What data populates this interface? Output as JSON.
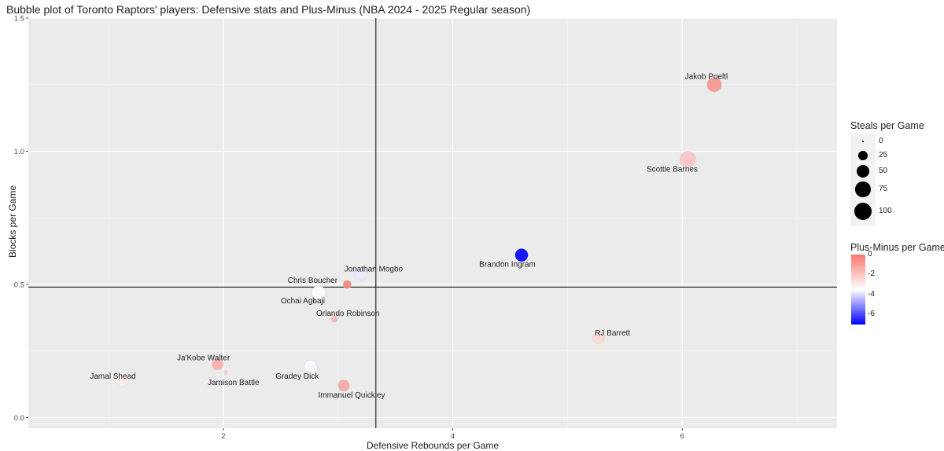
{
  "chart_data": {
    "type": "scatter",
    "title": "Bubble plot of Toronto Raptors' players: Defensive stats and Plus-Minus (NBA 2024 - 2025 Regular season)",
    "xlabel": "Defensive Rebounds per Game",
    "ylabel": "Blocks per Game",
    "xlim": [
      0.3,
      7.35
    ],
    "ylim": [
      -0.04,
      1.5
    ],
    "x_ticks": [
      2,
      4,
      6
    ],
    "y_ticks": [
      0.0,
      0.5,
      1.0,
      1.5
    ],
    "y_tick_labels": [
      "0.0",
      "0.5",
      "1.0",
      "1.5"
    ],
    "grid": true,
    "reference_lines": {
      "vline_x": 3.33,
      "hline_y": 0.49
    },
    "size_legend": {
      "title": "Steals per Game",
      "entries": [
        {
          "label": "0",
          "value": 0
        },
        {
          "label": "25",
          "value": 25
        },
        {
          "label": "50",
          "value": 50
        },
        {
          "label": "75",
          "value": 75
        },
        {
          "label": "100",
          "value": 100
        }
      ]
    },
    "color_legend": {
      "title": "Plus-Minus per Game",
      "range": [
        -7,
        0
      ],
      "ticks": [
        {
          "label": "0",
          "value": 0
        },
        {
          "label": "-2",
          "value": -2
        },
        {
          "label": "-4",
          "value": -4
        },
        {
          "label": "-6",
          "value": -6
        }
      ],
      "colors": {
        "low": "#0000ff",
        "mid": "#ffffff",
        "high": "#f8766d"
      }
    },
    "legend_position": "right",
    "points": [
      {
        "player": "Jakob Poeltl",
        "x": 6.28,
        "y": 1.25,
        "steals": 70,
        "plus_minus": -0.8
      },
      {
        "player": "Scottie Barnes",
        "x": 6.05,
        "y": 0.97,
        "steals": 85,
        "plus_minus": -2.0
      },
      {
        "player": "Brandon Ingram",
        "x": 4.6,
        "y": 0.61,
        "steals": 55,
        "plus_minus": -7.0
      },
      {
        "player": "RJ Barrett",
        "x": 5.27,
        "y": 0.3,
        "steals": 45,
        "plus_minus": -2.5
      },
      {
        "player": "Jonathan Mogbo",
        "x": 3.2,
        "y": 0.54,
        "steals": 50,
        "plus_minus": -3.8
      },
      {
        "player": "Chris Boucher",
        "x": 3.08,
        "y": 0.5,
        "steals": 18,
        "plus_minus": -0.3
      },
      {
        "player": "Ochai Agbaji",
        "x": 2.83,
        "y": 0.47,
        "steals": 60,
        "plus_minus": -3.4
      },
      {
        "player": "Orlando Robinson",
        "x": 2.97,
        "y": 0.37,
        "steals": 10,
        "plus_minus": -1.6
      },
      {
        "player": "Ja'Kobe Walter",
        "x": 1.95,
        "y": 0.2,
        "steals": 40,
        "plus_minus": -1.4
      },
      {
        "player": "Jamison Battle",
        "x": 2.02,
        "y": 0.17,
        "steals": 3,
        "plus_minus": -2.2
      },
      {
        "player": "Gradey Dick",
        "x": 2.76,
        "y": 0.19,
        "steals": 55,
        "plus_minus": -3.6
      },
      {
        "player": "Immanuel Quickley",
        "x": 3.05,
        "y": 0.12,
        "steals": 40,
        "plus_minus": -1.2
      },
      {
        "player": "Jamal Shead",
        "x": 1.12,
        "y": 0.14,
        "steals": 45,
        "plus_minus": -3.0
      }
    ]
  }
}
